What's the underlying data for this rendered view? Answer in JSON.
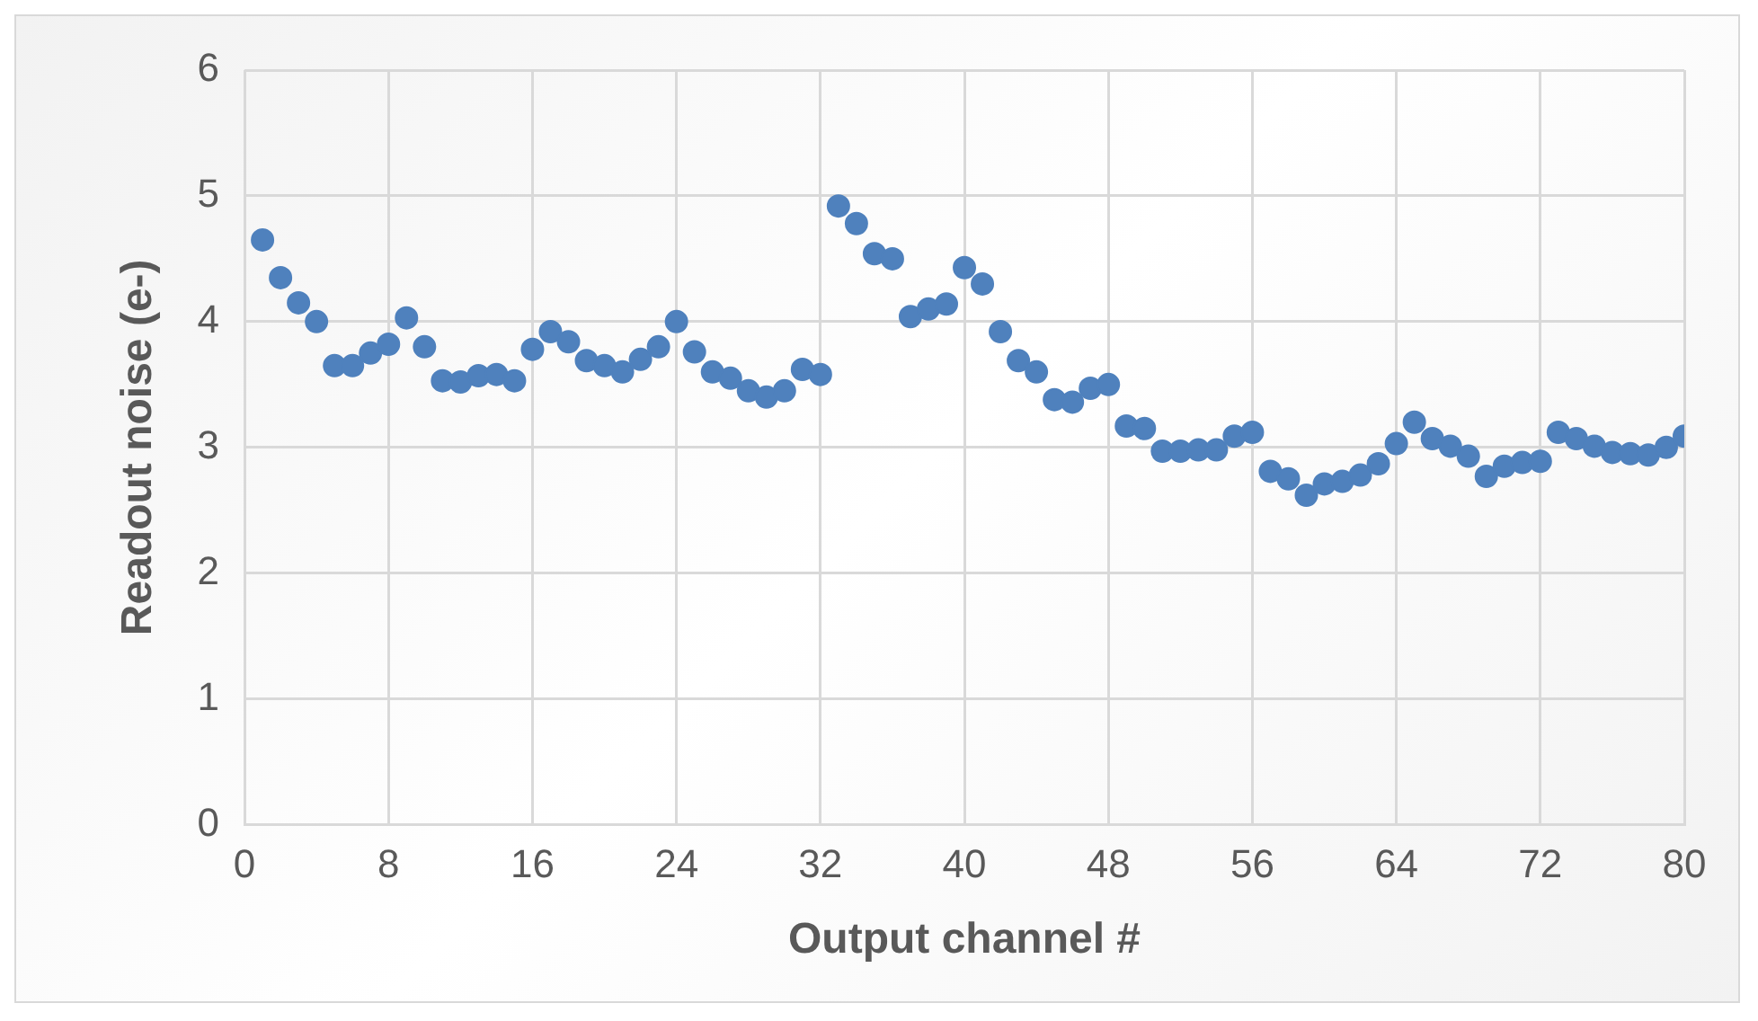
{
  "chart_data": {
    "type": "scatter",
    "xlabel": "Output channel #",
    "ylabel": "Readout noise (e-)",
    "x": [
      1,
      2,
      3,
      4,
      5,
      6,
      7,
      8,
      9,
      10,
      11,
      12,
      13,
      14,
      15,
      16,
      17,
      18,
      19,
      20,
      21,
      22,
      23,
      24,
      25,
      26,
      27,
      28,
      29,
      30,
      31,
      32,
      33,
      34,
      35,
      36,
      37,
      38,
      39,
      40,
      41,
      42,
      43,
      44,
      45,
      46,
      47,
      48,
      49,
      50,
      51,
      52,
      53,
      54,
      55,
      56,
      57,
      58,
      59,
      60,
      61,
      62,
      63,
      64,
      65,
      66,
      67,
      68,
      69,
      70,
      71,
      72,
      73,
      74,
      75,
      76,
      77,
      78,
      79,
      80
    ],
    "series": [
      {
        "color": "#4f81bd",
        "values": [
          4.65,
          4.35,
          4.15,
          4.0,
          3.65,
          3.65,
          3.75,
          3.82,
          4.03,
          3.8,
          3.53,
          3.52,
          3.57,
          3.58,
          3.53,
          3.78,
          3.92,
          3.84,
          3.69,
          3.65,
          3.6,
          3.7,
          3.8,
          4.0,
          3.76,
          3.6,
          3.55,
          3.45,
          3.4,
          3.45,
          3.62,
          3.58,
          4.92,
          4.78,
          4.54,
          4.5,
          4.04,
          4.1,
          4.14,
          4.43,
          4.3,
          3.92,
          3.69,
          3.6,
          3.38,
          3.36,
          3.47,
          3.5,
          3.17,
          3.15,
          2.97,
          2.97,
          2.98,
          2.98,
          3.09,
          3.12,
          2.81,
          2.75,
          2.62,
          2.71,
          2.73,
          2.78,
          2.87,
          3.03,
          3.2,
          3.07,
          3.01,
          2.93,
          2.77,
          2.85,
          2.88,
          2.89,
          3.12,
          3.07,
          3.01,
          2.96,
          2.95,
          2.94,
          3.0,
          3.09
        ]
      }
    ],
    "xlim": [
      0,
      80
    ],
    "xticks": [
      0,
      8,
      16,
      24,
      32,
      40,
      48,
      56,
      64,
      72,
      80
    ],
    "ylim": [
      0,
      6
    ],
    "yticks": [
      0,
      1,
      2,
      3,
      4,
      5,
      6
    ],
    "grid": true,
    "marker": "circle",
    "legend": false
  }
}
